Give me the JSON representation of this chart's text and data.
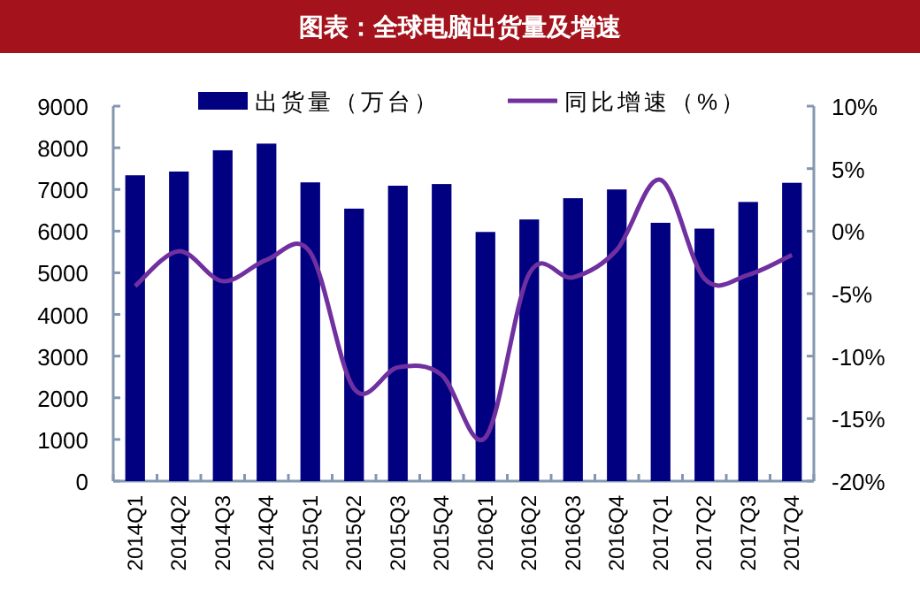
{
  "chart_data": {
    "type": "bar",
    "title": "图表：全球电脑出货量及增速",
    "categories": [
      "2014Q1",
      "2014Q2",
      "2014Q3",
      "2014Q4",
      "2015Q1",
      "2015Q2",
      "2015Q3",
      "2015Q4",
      "2016Q1",
      "2016Q2",
      "2016Q3",
      "2016Q4",
      "2017Q1",
      "2017Q2",
      "2017Q3",
      "2017Q4"
    ],
    "series": [
      {
        "name": "出货量（万台）",
        "color": "#000080",
        "values": [
          7340,
          7430,
          7940,
          8100,
          7170,
          6540,
          7090,
          7130,
          5980,
          6280,
          6790,
          7000,
          6200,
          6060,
          6700,
          7160
        ]
      },
      {
        "name": "同比增速（%）",
        "type": "line",
        "axis": "y2",
        "color": "#7030a0",
        "values": [
          -4.4,
          -1.6,
          -4.0,
          -2.3,
          -1.7,
          -12.6,
          -10.9,
          -11.5,
          -16.5,
          -3.4,
          -3.7,
          -1.5,
          4.1,
          -3.8,
          -3.5,
          -1.9
        ]
      }
    ],
    "ylim": [
      0,
      9000
    ],
    "yticks": [
      0,
      1000,
      2000,
      3000,
      4000,
      5000,
      6000,
      7000,
      8000,
      9000
    ],
    "y2lim": [
      -20,
      10
    ],
    "y2ticks": [
      {
        "value": 10,
        "label": "10%"
      },
      {
        "value": 5,
        "label": "5%"
      },
      {
        "value": 0,
        "label": "0%"
      },
      {
        "value": -5,
        "label": "-5%"
      },
      {
        "value": -10,
        "label": "-10%"
      },
      {
        "value": -15,
        "label": "-15%"
      },
      {
        "value": -20,
        "label": "-20%"
      }
    ],
    "legend": "top",
    "grid": false
  }
}
